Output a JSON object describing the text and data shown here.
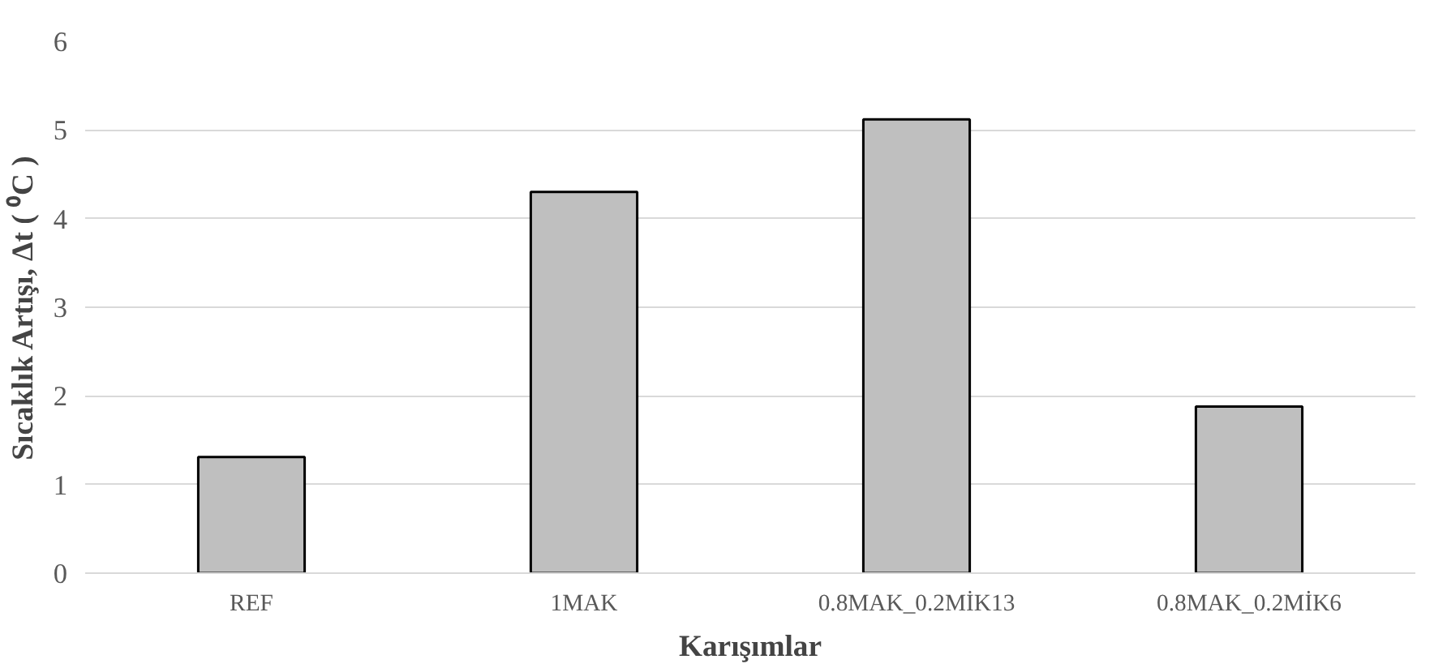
{
  "chart_data": {
    "type": "bar",
    "xlabel": "Karışımlar",
    "ylabel": "Sıcaklık Artışı, Δt ( ⁰C )",
    "categories": [
      "REF",
      "1MAK",
      "0.8MAK_0.2MİK13",
      "0.8MAK_0.2MİK6"
    ],
    "values": [
      1.31,
      4.3,
      5.12,
      1.88
    ],
    "color": "#bfbfbf",
    "ylim": [
      0,
      6
    ],
    "yticks": [
      0,
      1,
      2,
      3,
      4,
      5,
      6
    ],
    "grid": "y"
  }
}
